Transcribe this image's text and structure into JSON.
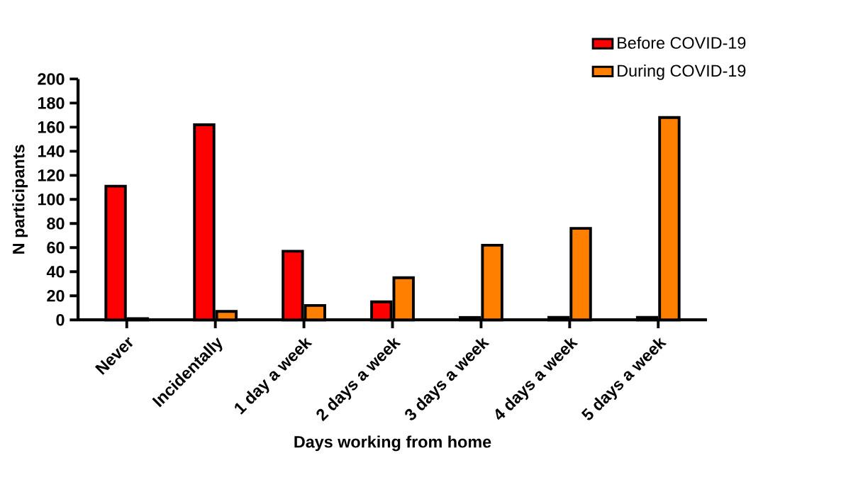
{
  "chart_data": {
    "type": "bar",
    "xlabel": "Days working from home",
    "ylabel": "N participants",
    "categories": [
      "Never",
      "Incidentally",
      "1 day a week",
      "2 days a week",
      "3 days a week",
      "4 days a week",
      "5 days a week"
    ],
    "series": [
      {
        "name": "Before COVID-19",
        "color": "#ff0000",
        "values": [
          111,
          162,
          57,
          15,
          2,
          2,
          2
        ]
      },
      {
        "name": "During COVID-19",
        "color": "#ff8000",
        "values": [
          1,
          7,
          12,
          35,
          62,
          76,
          168
        ]
      }
    ],
    "ylim": [
      0,
      200
    ],
    "yticks": [
      0,
      20,
      40,
      60,
      80,
      100,
      120,
      140,
      160,
      180,
      200
    ],
    "legend": "top right",
    "grid": false
  }
}
